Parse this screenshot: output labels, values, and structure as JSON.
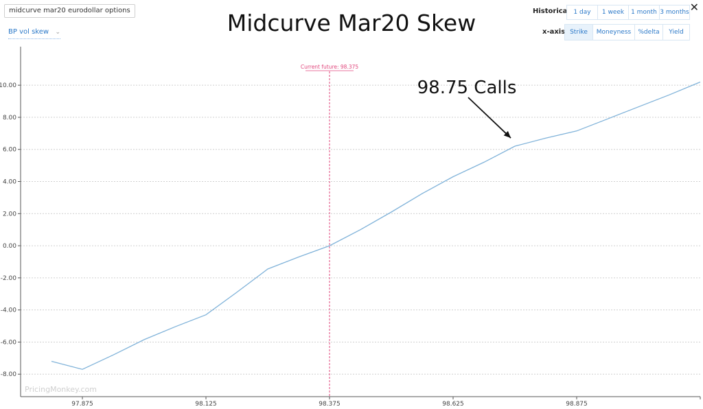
{
  "header": {
    "search_value": "midcurve mar20 eurodollar options",
    "metric_select": "BP vol skew",
    "title": "Midcurve Mar20 Skew",
    "historical_label": "Historical:",
    "historical_buttons": [
      "1 day",
      "1 week",
      "1 month",
      "3 months"
    ],
    "xaxis_label": "x-axis:",
    "xaxis_buttons": [
      "Strike",
      "Moneyness",
      "%delta",
      "Yield"
    ],
    "xaxis_active": "Strike",
    "close_icon": "close-icon"
  },
  "colors": {
    "line": "#7fb2d9",
    "current_future": "#e0457b",
    "grid": "#cfcfcf",
    "active_button_bg": "#e8f2fb",
    "link": "#2a78c8"
  },
  "chart_data": {
    "type": "line",
    "title": "Midcurve Mar20 Skew",
    "xlabel": "",
    "ylabel": "",
    "x": [
      97.8125,
      97.875,
      97.9375,
      98.0,
      98.0625,
      98.125,
      98.1875,
      98.25,
      98.3125,
      98.375,
      98.4375,
      98.5,
      98.5625,
      98.625,
      98.6875,
      98.75,
      98.8125,
      98.875,
      98.9375,
      99.0,
      99.0625,
      99.125
    ],
    "y": [
      -7.2,
      -7.7,
      -6.8,
      -5.85,
      -5.05,
      -4.3,
      -2.9,
      -1.45,
      -0.7,
      0.0,
      1.0,
      2.1,
      3.25,
      4.3,
      5.2,
      6.2,
      6.7,
      7.15,
      7.9,
      8.65,
      9.4,
      10.2
    ],
    "xlim": [
      97.75,
      99.125
    ],
    "ylim": [
      -9.4,
      12.4
    ],
    "x_ticks": [
      "97.875",
      "98.125",
      "98.375",
      "98.625",
      "98.875"
    ],
    "x_tick_values": [
      97.875,
      98.125,
      98.375,
      98.625,
      98.875
    ],
    "y_ticks": [
      "10.00",
      "8.00",
      "6.00",
      "4.00",
      "2.00",
      "0.00",
      "-2.00",
      "-4.00",
      "-6.00",
      "-8.00"
    ],
    "y_tick_values": [
      10,
      8,
      6,
      4,
      2,
      0,
      -2,
      -4,
      -6,
      -8
    ],
    "grid": "horizontal dashed",
    "current_future": {
      "label": "Current future: 98.375",
      "value": 98.375
    },
    "annotation": {
      "text": "98.75 Calls",
      "x": 98.75,
      "y": 6.2
    },
    "watermark": "PricingMonkey.com"
  }
}
